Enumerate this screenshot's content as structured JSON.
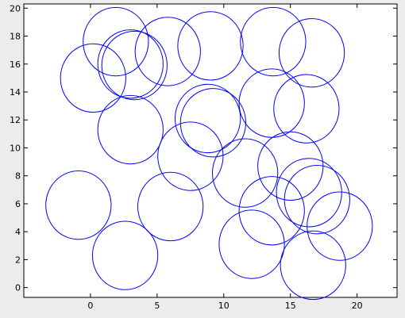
{
  "window": {
    "background": "#ececec"
  },
  "chart_data": {
    "type": "scatter",
    "title": "",
    "xlabel": "",
    "ylabel": "",
    "xlim": [
      -5,
      23
    ],
    "ylim": [
      -0.7,
      20.3
    ],
    "xticks": [
      0,
      5,
      10,
      15,
      20
    ],
    "yticks": [
      0,
      2,
      4,
      6,
      8,
      10,
      12,
      14,
      16,
      18,
      20
    ],
    "grid": false,
    "circle_color": "#0000ff",
    "plot_background": "#ffffff",
    "circles": [
      {
        "x": 1.9,
        "y": 17.6,
        "r": 2.45
      },
      {
        "x": 3.0,
        "y": 16.0,
        "r": 2.45
      },
      {
        "x": 3.3,
        "y": 15.9,
        "r": 2.45
      },
      {
        "x": 5.8,
        "y": 16.9,
        "r": 2.45
      },
      {
        "x": 9.0,
        "y": 17.3,
        "r": 2.45
      },
      {
        "x": 13.7,
        "y": 17.6,
        "r": 2.45
      },
      {
        "x": 16.6,
        "y": 16.8,
        "r": 2.45
      },
      {
        "x": 0.2,
        "y": 15.0,
        "r": 2.45
      },
      {
        "x": 3.0,
        "y": 11.3,
        "r": 2.45
      },
      {
        "x": 8.8,
        "y": 12.1,
        "r": 2.45
      },
      {
        "x": 9.2,
        "y": 11.8,
        "r": 2.45
      },
      {
        "x": 13.6,
        "y": 13.2,
        "r": 2.45
      },
      {
        "x": 16.2,
        "y": 12.8,
        "r": 2.45
      },
      {
        "x": 7.5,
        "y": 9.4,
        "r": 2.45
      },
      {
        "x": 11.6,
        "y": 8.2,
        "r": 2.45
      },
      {
        "x": 15.0,
        "y": 8.7,
        "r": 2.45
      },
      {
        "x": 16.4,
        "y": 6.8,
        "r": 2.45
      },
      {
        "x": 17.0,
        "y": 6.3,
        "r": 2.45
      },
      {
        "x": -0.9,
        "y": 5.9,
        "r": 2.45
      },
      {
        "x": 6.0,
        "y": 5.8,
        "r": 2.45
      },
      {
        "x": 13.6,
        "y": 5.5,
        "r": 2.45
      },
      {
        "x": 18.7,
        "y": 4.4,
        "r": 2.45
      },
      {
        "x": 2.6,
        "y": 2.3,
        "r": 2.45
      },
      {
        "x": 12.1,
        "y": 3.1,
        "r": 2.45
      },
      {
        "x": 16.7,
        "y": 1.6,
        "r": 2.45
      }
    ]
  }
}
